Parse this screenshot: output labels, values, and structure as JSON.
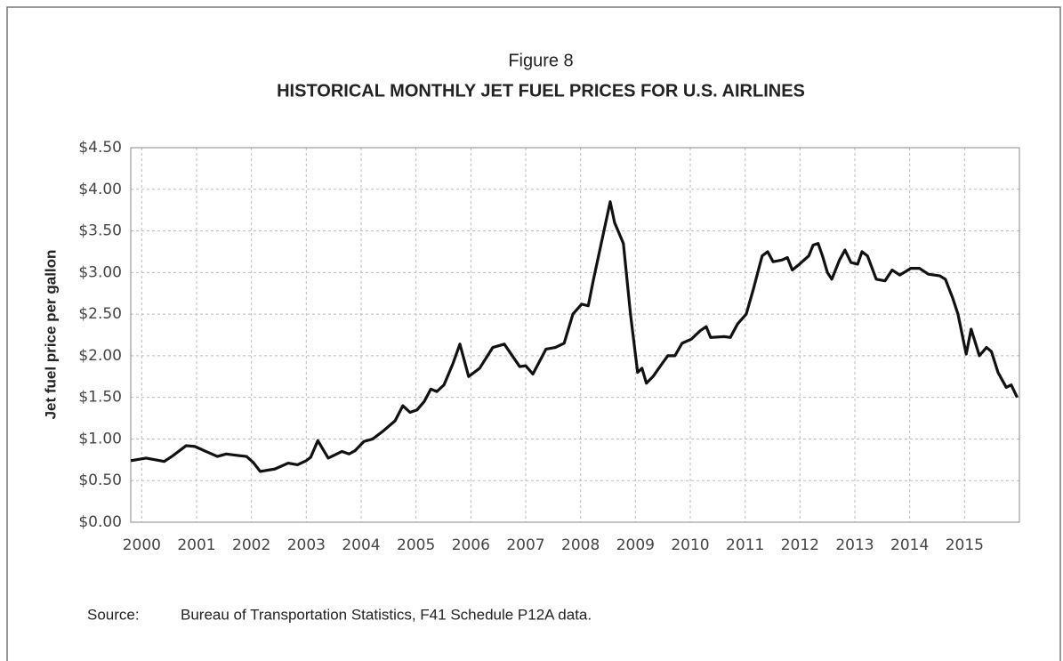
{
  "chart_data": {
    "type": "line",
    "figure_label": "Figure 8",
    "title": "HISTORICAL MONTHLY JET FUEL PRICES FOR U.S. AIRLINES",
    "y_label": "Jet fuel price per gallon",
    "source_label": "Source:",
    "source": "Bureau of Transportation Statistics, F41 Schedule P12A data.",
    "color": "#111111",
    "grid": true,
    "x": [
      1999.8,
      2000.08,
      2000.41,
      2000.57,
      2000.81,
      2000.97,
      2001.17,
      2001.38,
      2001.54,
      2001.78,
      2001.91,
      2002.03,
      2002.16,
      2002.43,
      2002.67,
      2002.84,
      2003.0,
      2003.08,
      2003.21,
      2003.4,
      2003.65,
      2003.78,
      2003.89,
      2004.05,
      2004.21,
      2004.41,
      2004.62,
      2004.76,
      2004.89,
      2005.02,
      2005.15,
      2005.27,
      2005.38,
      2005.51,
      2005.67,
      2005.8,
      2005.96,
      2006.16,
      2006.4,
      2006.61,
      2006.89,
      2007.0,
      2007.13,
      2007.37,
      2007.54,
      2007.7,
      2007.86,
      2008.02,
      2008.14,
      2008.23,
      2008.54,
      2008.62,
      2008.78,
      2008.91,
      2009.04,
      2009.12,
      2009.2,
      2009.32,
      2009.48,
      2009.59,
      2009.72,
      2009.85,
      2010.02,
      2010.18,
      2010.29,
      2010.37,
      2010.62,
      2010.73,
      2010.86,
      2011.02,
      2011.15,
      2011.31,
      2011.41,
      2011.51,
      2011.67,
      2011.77,
      2011.86,
      2011.99,
      2012.16,
      2012.24,
      2012.33,
      2012.41,
      2012.5,
      2012.58,
      2012.72,
      2012.82,
      2012.93,
      2013.05,
      2013.13,
      2013.23,
      2013.39,
      2013.55,
      2013.68,
      2013.82,
      2014.02,
      2014.18,
      2014.34,
      2014.55,
      2014.65,
      2014.78,
      2014.88,
      2015.03,
      2015.12,
      2015.27,
      2015.4,
      2015.49,
      2015.61,
      2015.76,
      2015.85,
      2015.96
    ],
    "values": [
      0.74,
      0.77,
      0.73,
      0.8,
      0.92,
      0.91,
      0.85,
      0.79,
      0.82,
      0.8,
      0.79,
      0.72,
      0.61,
      0.64,
      0.71,
      0.69,
      0.74,
      0.78,
      0.98,
      0.77,
      0.85,
      0.82,
      0.86,
      0.97,
      1.0,
      1.1,
      1.22,
      1.4,
      1.32,
      1.35,
      1.45,
      1.6,
      1.57,
      1.65,
      1.9,
      2.14,
      1.75,
      1.85,
      2.1,
      2.14,
      1.87,
      1.88,
      1.78,
      2.08,
      2.1,
      2.15,
      2.5,
      2.62,
      2.6,
      2.9,
      3.85,
      3.6,
      3.35,
      2.5,
      1.8,
      1.85,
      1.67,
      1.75,
      1.9,
      2.0,
      2.0,
      2.15,
      2.2,
      2.3,
      2.35,
      2.22,
      2.23,
      2.22,
      2.38,
      2.5,
      2.8,
      3.2,
      3.25,
      3.13,
      3.15,
      3.18,
      3.03,
      3.1,
      3.2,
      3.33,
      3.35,
      3.2,
      3.0,
      2.92,
      3.15,
      3.27,
      3.12,
      3.1,
      3.25,
      3.2,
      2.92,
      2.9,
      3.03,
      2.97,
      3.05,
      3.05,
      2.98,
      2.96,
      2.92,
      2.7,
      2.5,
      2.02,
      2.32,
      2.0,
      2.1,
      2.05,
      1.8,
      1.62,
      1.65,
      1.5
    ],
    "xlim": [
      1999.8,
      2016
    ],
    "xticks": [
      2000,
      2001,
      2002,
      2003,
      2004,
      2005,
      2006,
      2007,
      2008,
      2009,
      2010,
      2011,
      2012,
      2013,
      2014,
      2015
    ],
    "ylim": [
      0,
      4.5
    ],
    "yticks": [
      {
        "value": 0,
        "label": "$0.00"
      },
      {
        "value": 0.5,
        "label": "$0.50"
      },
      {
        "value": 1,
        "label": "$1.00"
      },
      {
        "value": 1.5,
        "label": "$1.50"
      },
      {
        "value": 2,
        "label": "$2.00"
      },
      {
        "value": 2.5,
        "label": "$2.50"
      },
      {
        "value": 3,
        "label": "$3.00"
      },
      {
        "value": 3.5,
        "label": "$3.50"
      },
      {
        "value": 4,
        "label": "$4.00"
      },
      {
        "value": 4.5,
        "label": "$4.50"
      }
    ]
  }
}
